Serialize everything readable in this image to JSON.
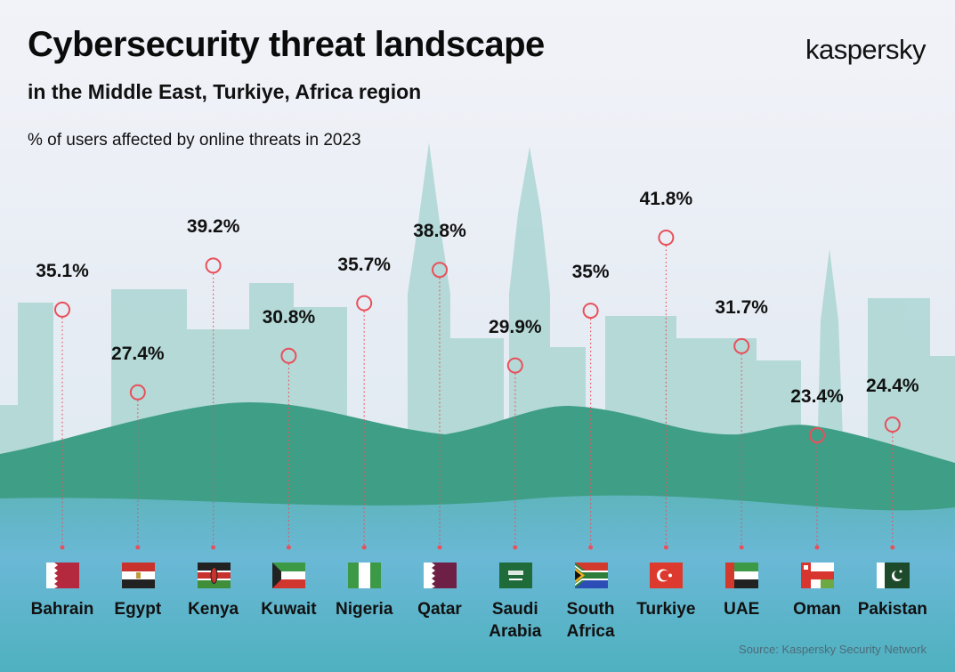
{
  "header": {
    "title": "Cybersecurity threat landscape",
    "subtitle": "in the Middle East, Turkiye, Africa region",
    "caption": "% of users affected by online threats in 2023",
    "logo": "kaspersky"
  },
  "footer": {
    "source": "Source: Kaspersky Security Network"
  },
  "colors": {
    "marker": "#e8505b",
    "hill": "#3f9e86",
    "sea": "#5bb6c6",
    "skyline": "#a9d4d2"
  },
  "chart_data": {
    "type": "lollipop",
    "title": "% of users affected by online threats in 2023",
    "categories": [
      "Bahrain",
      "Egypt",
      "Kenya",
      "Kuwait",
      "Nigeria",
      "Qatar",
      "Saudi Arabia",
      "South Africa",
      "Turkiye",
      "UAE",
      "Oman",
      "Pakistan"
    ],
    "values": [
      35.1,
      27.4,
      39.2,
      30.8,
      35.7,
      38.8,
      29.9,
      35,
      41.8,
      31.7,
      23.4,
      24.4
    ],
    "value_labels": [
      "35.1%",
      "27.4%",
      "39.2%",
      "30.8%",
      "35.7%",
      "38.8%",
      "29.9%",
      "35%",
      "41.8%",
      "31.7%",
      "23.4%",
      "24.4%"
    ],
    "flags": [
      "flag-bahrain",
      "flag-egypt",
      "flag-kenya",
      "flag-kuwait",
      "flag-nigeria",
      "flag-qatar",
      "flag-saudi-arabia",
      "flag-south-africa",
      "flag-turkiye",
      "flag-uae",
      "flag-oman",
      "flag-pakistan"
    ],
    "grid": false
  }
}
